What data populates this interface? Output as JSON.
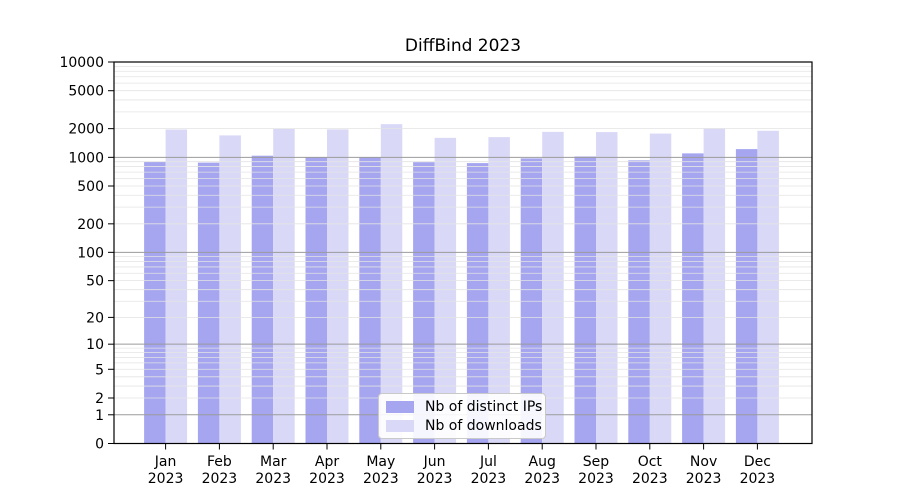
{
  "chart_data": {
    "type": "bar",
    "title": "DiffBind 2023",
    "categories": [
      "Jan",
      "Feb",
      "Mar",
      "Apr",
      "May",
      "Jun",
      "Jul",
      "Aug",
      "Sep",
      "Oct",
      "Nov",
      "Dec"
    ],
    "x_tick_line2": "2023",
    "series": [
      {
        "name": "Nb of distinct IPs",
        "color": "#a5a5f0",
        "values": [
          900,
          880,
          1040,
          1000,
          1000,
          890,
          870,
          975,
          1020,
          930,
          1100,
          1220
        ]
      },
      {
        "name": "Nb of downloads",
        "color": "#d9d9f7",
        "values": [
          1960,
          1700,
          2000,
          1965,
          2230,
          1600,
          1630,
          1850,
          1840,
          1775,
          2025,
          1900
        ]
      }
    ],
    "yticks": [
      0,
      1,
      2,
      5,
      10,
      20,
      50,
      100,
      200,
      500,
      1000,
      2000,
      5000,
      10000
    ],
    "ylim": [
      0,
      10000
    ],
    "yscale": "log10(v+1)",
    "grid": {
      "decade_line_color": "#9b9b9b",
      "minor_line_color": "#e4e4e4",
      "minor_values": [
        3,
        4,
        6,
        7,
        8,
        9,
        30,
        40,
        60,
        70,
        80,
        90,
        300,
        400,
        600,
        700,
        800,
        900,
        3000,
        4000,
        6000,
        7000,
        8000,
        9000
      ]
    },
    "legend_position": "lower center",
    "axis": {
      "frame_color": "#000000",
      "tick_color": "#000000",
      "label_color": "#000000"
    },
    "background": "#ffffff"
  }
}
